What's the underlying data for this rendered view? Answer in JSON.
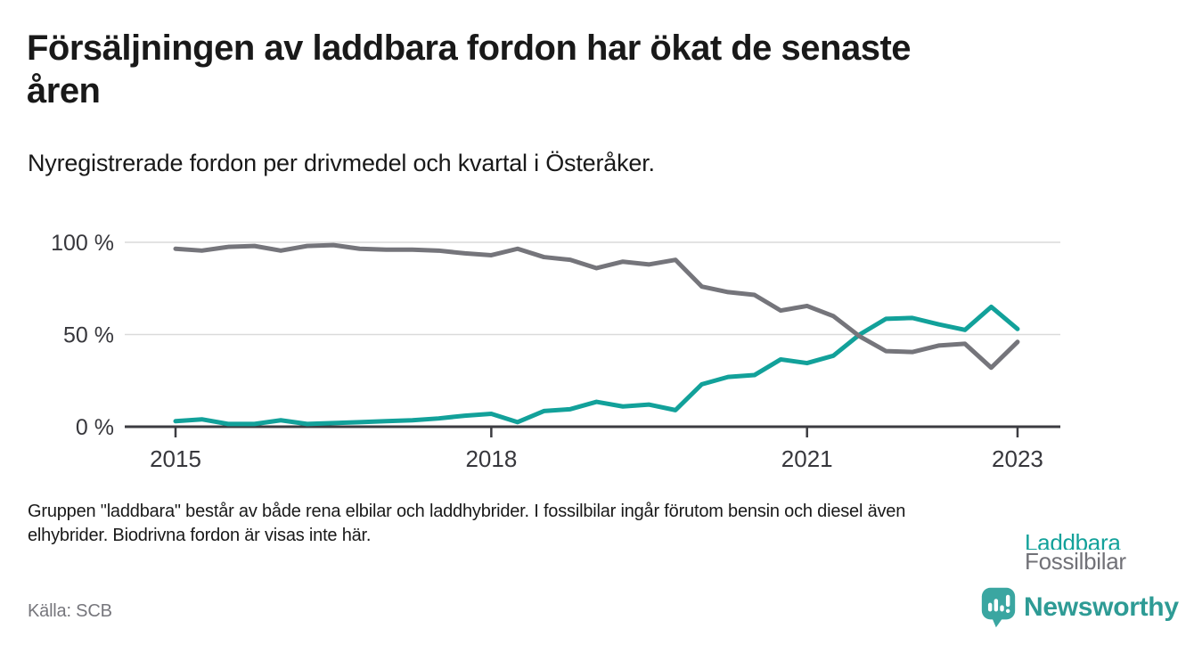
{
  "header": {
    "title_lines": [
      "Försäljningen av laddbara fordon har ökat de senaste",
      "åren"
    ],
    "subtitle": "Nyregistrerade fordon per drivmedel och kvartal i Österåker."
  },
  "chart_data": {
    "type": "line",
    "unit": "%",
    "ylim": [
      0,
      100
    ],
    "grid": "horizontal",
    "legend_position": "direct-labels-at-line-end",
    "categories": [
      "2015 Q1",
      "2015 Q2",
      "2015 Q3",
      "2015 Q4",
      "2016 Q1",
      "2016 Q2",
      "2016 Q3",
      "2016 Q4",
      "2017 Q1",
      "2017 Q2",
      "2017 Q3",
      "2017 Q4",
      "2018 Q1",
      "2018 Q2",
      "2018 Q3",
      "2018 Q4",
      "2019 Q1",
      "2019 Q2",
      "2019 Q3",
      "2019 Q4",
      "2020 Q1",
      "2020 Q2",
      "2020 Q3",
      "2020 Q4",
      "2021 Q1",
      "2021 Q2",
      "2021 Q3",
      "2021 Q4",
      "2022 Q1",
      "2022 Q2",
      "2022 Q3",
      "2022 Q4",
      "2023 Q1"
    ],
    "x_ticks": [
      {
        "label": "2015",
        "index": 0
      },
      {
        "label": "2018",
        "index": 12
      },
      {
        "label": "2021",
        "index": 24
      },
      {
        "label": "2023",
        "index": 32
      }
    ],
    "y_ticks": [
      {
        "label": "0 %",
        "value": 0
      },
      {
        "label": "50 %",
        "value": 50
      },
      {
        "label": "100 %",
        "value": 100
      }
    ],
    "series": [
      {
        "name": "Laddbara",
        "color": "#12a19a",
        "values": [
          3,
          4,
          1.5,
          1.5,
          3.5,
          1.5,
          2,
          2.5,
          3,
          3.5,
          4.5,
          6,
          7,
          2.5,
          8.5,
          9.5,
          13.5,
          11,
          12,
          9,
          23,
          27,
          28,
          36.5,
          34.5,
          38.5,
          50,
          58.5,
          59,
          55.5,
          52.5,
          65,
          53
        ]
      },
      {
        "name": "Fossilbilar",
        "color": "#75757b",
        "values": [
          96.5,
          95.5,
          97.5,
          98,
          95.5,
          98,
          98.5,
          96.5,
          96,
          96,
          95.5,
          94,
          93,
          96.5,
          92,
          90.5,
          86,
          89.5,
          88,
          90.5,
          76,
          73,
          71.5,
          63,
          65.5,
          60,
          49,
          41,
          40.5,
          44,
          45,
          32,
          46
        ]
      }
    ]
  },
  "footer": {
    "note_lines": [
      "Gruppen \"laddbara\" består av både rena elbilar och laddhybrider. I fossilbilar ingår förutom bensin och diesel även",
      "elhybrider. Biodrivna fordon är visas inte här."
    ],
    "source": "Källa: SCB",
    "brand": "Newsworthy"
  },
  "colors": {
    "accent_teal": "#12a19a",
    "line_gray": "#75757b",
    "axis_text": "#37373c",
    "axis_line": "#3c3c41",
    "gridline": "#dadada",
    "brand_teal": "#2e9b95"
  }
}
